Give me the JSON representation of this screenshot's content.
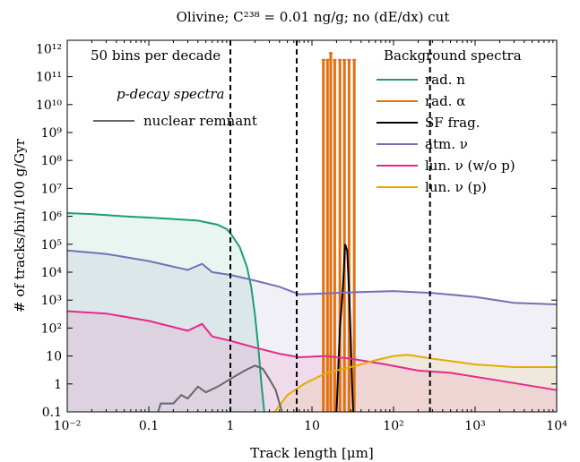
{
  "chart_data": {
    "type": "line",
    "title": "Olivine; C²³⁸ = 0.01 ng/g; no (dE/dx) cut",
    "xlabel": "Track length [μm]",
    "ylabel": "# of tracks/bin/100 g/Gyr",
    "xscale": "log",
    "yscale": "log",
    "xlim": [
      0.01,
      10000
    ],
    "ylim": [
      0.1,
      2000000000000
    ],
    "grid": false,
    "x_ticks": [
      {
        "v": 0.01,
        "label": "10⁻²"
      },
      {
        "v": 0.1,
        "label": "0.1"
      },
      {
        "v": 1,
        "label": "1"
      },
      {
        "v": 10,
        "label": "10"
      },
      {
        "v": 100,
        "label": "10²"
      },
      {
        "v": 1000,
        "label": "10³"
      },
      {
        "v": 10000,
        "label": "10⁴"
      }
    ],
    "y_ticks": [
      {
        "v": 0.1,
        "label": "0.1"
      },
      {
        "v": 1,
        "label": "1"
      },
      {
        "v": 10,
        "label": "10"
      },
      {
        "v": 100,
        "label": "10²"
      },
      {
        "v": 1000,
        "label": "10³"
      },
      {
        "v": 10000,
        "label": "10⁴"
      },
      {
        "v": 100000,
        "label": "10⁵"
      },
      {
        "v": 1000000,
        "label": "10⁶"
      },
      {
        "v": 10000000,
        "label": "10⁷"
      },
      {
        "v": 100000000,
        "label": "10⁸"
      },
      {
        "v": 1000000000,
        "label": "10⁹"
      },
      {
        "v": 10000000000,
        "label": "10¹⁰"
      },
      {
        "v": 100000000000,
        "label": "10¹¹"
      },
      {
        "v": 1000000000000,
        "label": "10¹²"
      }
    ],
    "annotation": "50 bins per decade",
    "legend_left_title": "p-decay spectra",
    "legend_right_title": "Background spectra",
    "vlines": [
      1.0,
      6.5,
      280
    ],
    "series": [
      {
        "name": "rad. n",
        "color": "#1a9e77",
        "fill": true,
        "points": [
          [
            0.01,
            1300000
          ],
          [
            0.02,
            1200000
          ],
          [
            0.05,
            1000000
          ],
          [
            0.1,
            900000
          ],
          [
            0.2,
            800000
          ],
          [
            0.4,
            700000
          ],
          [
            0.7,
            500000
          ],
          [
            0.9,
            350000
          ],
          [
            1.0,
            250000
          ],
          [
            1.3,
            80000
          ],
          [
            1.6,
            15000
          ],
          [
            1.8,
            3000
          ],
          [
            2.0,
            300
          ],
          [
            2.2,
            20
          ],
          [
            2.4,
            1
          ],
          [
            2.6,
            0.1
          ]
        ]
      },
      {
        "name": "rad. α",
        "color": "#e07010",
        "fill": false,
        "bars": true,
        "bars_x": [
          13.8,
          15.5,
          17.0,
          19.0,
          22.0,
          25.0,
          28.5,
          33.0
        ],
        "bars_y": [
          400000000000,
          400000000000,
          700000000000,
          400000000000,
          400000000000,
          400000000000,
          400000000000,
          400000000000
        ]
      },
      {
        "name": "SF frag.",
        "color": "#000000",
        "fill": false,
        "points": [
          [
            20,
            0.1
          ],
          [
            22,
            100
          ],
          [
            24,
            3000
          ],
          [
            25.5,
            100000
          ],
          [
            27,
            60000
          ],
          [
            28.5,
            2000
          ],
          [
            30,
            30
          ],
          [
            31,
            1
          ],
          [
            32,
            0.1
          ]
        ]
      },
      {
        "name": "atm. ν",
        "color": "#7570b3",
        "fill": true,
        "points": [
          [
            0.01,
            60000
          ],
          [
            0.03,
            45000
          ],
          [
            0.1,
            25000
          ],
          [
            0.3,
            12000
          ],
          [
            0.45,
            20000
          ],
          [
            0.6,
            10000
          ],
          [
            1,
            8000
          ],
          [
            2,
            5000
          ],
          [
            4,
            3000
          ],
          [
            7,
            1600
          ],
          [
            12,
            1700
          ],
          [
            30,
            1900
          ],
          [
            100,
            2100
          ],
          [
            300,
            1800
          ],
          [
            1000,
            1300
          ],
          [
            3000,
            800
          ],
          [
            10000,
            700
          ]
        ]
      },
      {
        "name": "lun. ν (w/o p)",
        "color": "#e7298a",
        "fill": true,
        "points": [
          [
            0.01,
            400
          ],
          [
            0.03,
            330
          ],
          [
            0.1,
            180
          ],
          [
            0.3,
            80
          ],
          [
            0.45,
            140
          ],
          [
            0.6,
            50
          ],
          [
            1,
            35
          ],
          [
            2,
            20
          ],
          [
            4,
            12
          ],
          [
            7,
            9
          ],
          [
            15,
            10
          ],
          [
            30,
            8
          ],
          [
            80,
            5
          ],
          [
            200,
            3
          ],
          [
            500,
            2.5
          ],
          [
            2000,
            1.3
          ],
          [
            10000,
            0.6
          ]
        ]
      },
      {
        "name": "lun. ν (p)",
        "color": "#e6ab02",
        "fill": true,
        "points": [
          [
            3.5,
            0.1
          ],
          [
            5,
            0.4
          ],
          [
            8,
            1
          ],
          [
            15,
            2.5
          ],
          [
            30,
            4
          ],
          [
            60,
            7
          ],
          [
            100,
            10
          ],
          [
            150,
            11
          ],
          [
            300,
            8
          ],
          [
            1000,
            5
          ],
          [
            3000,
            4
          ],
          [
            10000,
            4
          ]
        ]
      }
    ],
    "pdecay_series": [
      {
        "name": "nuclear remnant",
        "color": "#666666",
        "points": [
          [
            0.13,
            0.1
          ],
          [
            0.14,
            0.2
          ],
          [
            0.2,
            0.2
          ],
          [
            0.25,
            0.4
          ],
          [
            0.3,
            0.3
          ],
          [
            0.4,
            0.8
          ],
          [
            0.5,
            0.5
          ],
          [
            0.7,
            0.8
          ],
          [
            1.0,
            1.5
          ],
          [
            1.5,
            3
          ],
          [
            2.0,
            4.5
          ],
          [
            2.5,
            3.5
          ],
          [
            3.0,
            1.5
          ],
          [
            3.6,
            0.6
          ],
          [
            4.0,
            0.2
          ],
          [
            4.3,
            0.1
          ]
        ]
      }
    ]
  }
}
